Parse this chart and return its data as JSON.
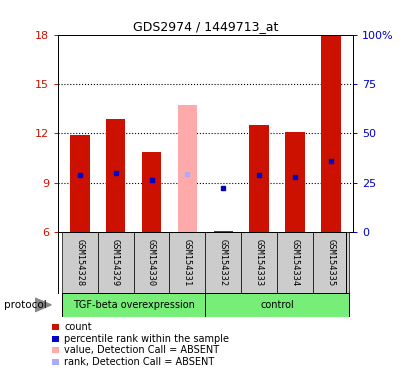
{
  "title": "GDS2974 / 1449713_at",
  "samples": [
    "GSM154328",
    "GSM154329",
    "GSM154330",
    "GSM154331",
    "GSM154332",
    "GSM154333",
    "GSM154334",
    "GSM154335"
  ],
  "ylim": [
    6,
    18
  ],
  "yticks": [
    6,
    9,
    12,
    15,
    18
  ],
  "bar_bottom": 6,
  "red_bar_tops": [
    11.9,
    12.9,
    10.9,
    6.0,
    6.1,
    12.5,
    12.1,
    18.0
  ],
  "blue_dot_y": [
    9.5,
    9.6,
    9.15,
    null,
    8.7,
    9.5,
    9.35,
    10.3
  ],
  "absent_bar_top": [
    null,
    null,
    null,
    13.7,
    null,
    null,
    null,
    null
  ],
  "absent_rank_y": [
    null,
    null,
    null,
    9.55,
    null,
    null,
    null,
    null
  ],
  "red_color": "#cc1100",
  "blue_color": "#0000cc",
  "absent_red_color": "#ffaaaa",
  "absent_blue_color": "#aaaaff",
  "bar_width": 0.55,
  "green_color": "#77ee77",
  "gray_color": "#cccccc",
  "right_tick_labels": [
    "0",
    "25",
    "50",
    "75",
    "100%"
  ],
  "right_tick_positions": [
    6,
    9,
    12,
    15,
    18
  ],
  "grid_lines": [
    9,
    12,
    15
  ]
}
